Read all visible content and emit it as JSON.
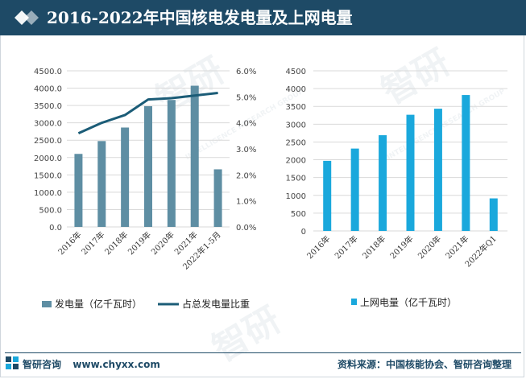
{
  "header": {
    "title": "2016-2022年中国核电发电量及上网电量"
  },
  "watermark": {
    "brand": "智研",
    "sub": "INTELLIGENCE RESEARCH GROUP"
  },
  "footer": {
    "brand": "智研咨询",
    "url": "www.chyxx.com",
    "source": "资料来源：中国核能协会、智研咨询整理"
  },
  "colors": {
    "header": "#1e4a66",
    "bar_left": "#5e8ea3",
    "line": "#1b5c77",
    "bar_right": "#1aa8dc"
  },
  "chart_data": [
    {
      "type": "bar+line",
      "categories": [
        "2016年",
        "2017年",
        "2018年",
        "2019年",
        "2020年",
        "2021年",
        "2022年1-5月"
      ],
      "series": [
        {
          "name": "发电量（亿千瓦时）",
          "type": "bar",
          "axis": "left",
          "values": [
            2105,
            2475,
            2865,
            3480,
            3660,
            4070,
            1660
          ]
        },
        {
          "name": "占总发电量比重",
          "type": "line",
          "axis": "right",
          "values": [
            3.6,
            4.0,
            4.3,
            4.9,
            4.95,
            5.05,
            5.15
          ]
        }
      ],
      "ylim": [
        0,
        4500
      ],
      "yticks": [
        "0.0",
        "500.0",
        "1000.0",
        "1500.0",
        "2000.0",
        "2500.0",
        "3000.0",
        "3500.0",
        "4000.0",
        "4500.0"
      ],
      "y2lim": [
        0,
        6
      ],
      "y2ticks": [
        "0.0%",
        "1.0%",
        "2.0%",
        "3.0%",
        "4.0%",
        "5.0%",
        "6.0%"
      ],
      "grid": true,
      "legend": "bottom"
    },
    {
      "type": "bar",
      "categories": [
        "2016年",
        "2017年",
        "2018年",
        "2019年",
        "2020年",
        "2021年",
        "2022年Q1"
      ],
      "series": [
        {
          "name": "上网电量（亿千瓦时）",
          "values": [
            1970,
            2315,
            2690,
            3265,
            3435,
            3820,
            915
          ]
        }
      ],
      "ylim": [
        0,
        4500
      ],
      "yticks": [
        "0",
        "500",
        "1000",
        "1500",
        "2000",
        "2500",
        "3000",
        "3500",
        "4000",
        "4500"
      ],
      "grid": true,
      "legend": "bottom"
    }
  ]
}
